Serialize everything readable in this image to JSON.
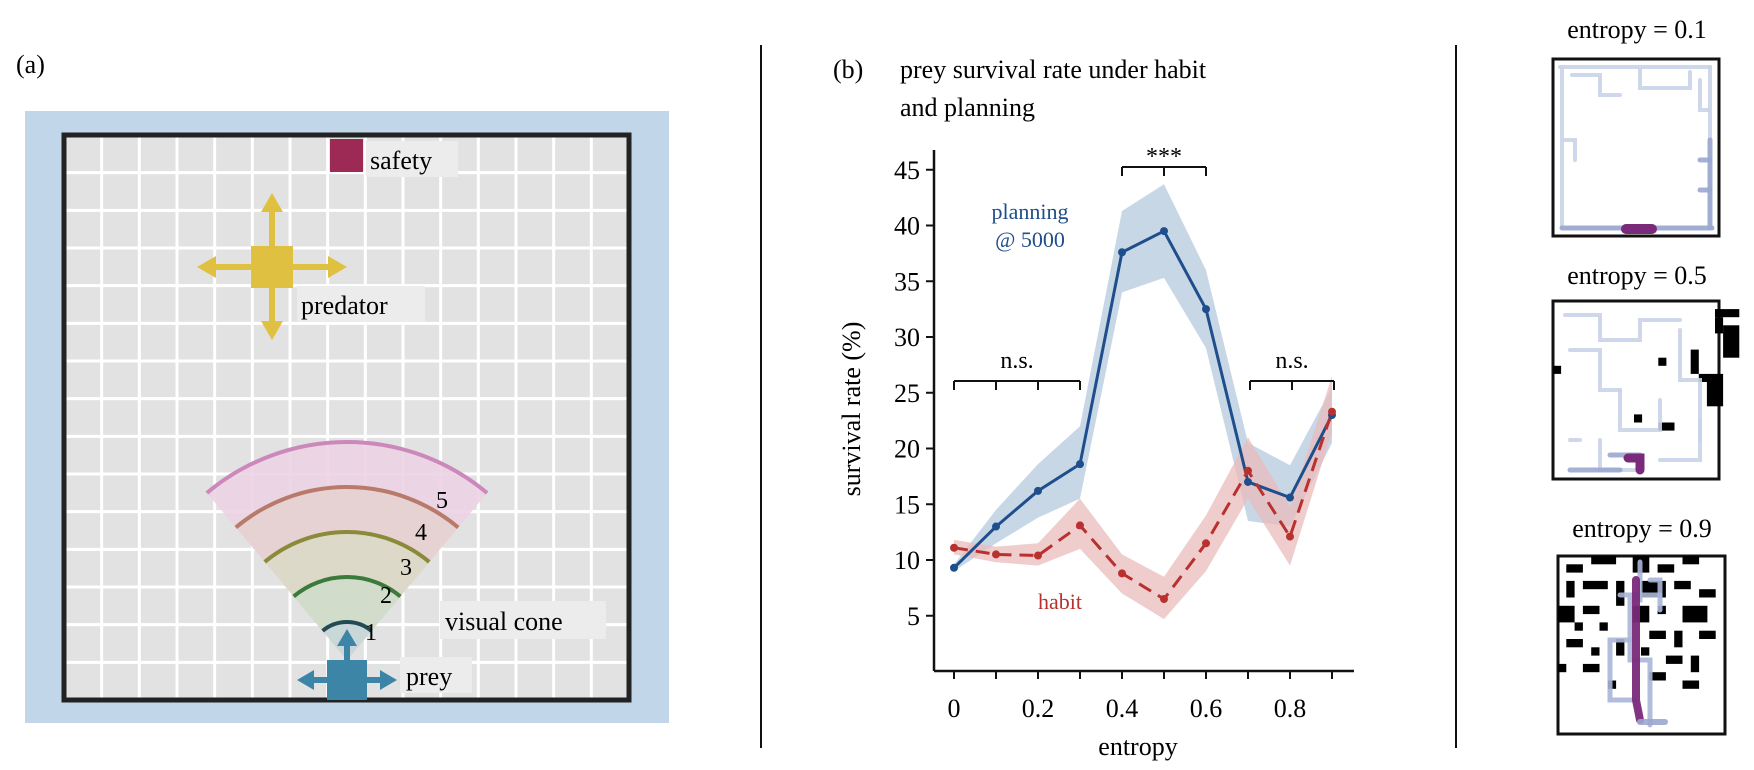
{
  "panel_a": {
    "label": "(a)",
    "labels": {
      "safety": "safety",
      "predator": "predator",
      "visual_cone": "visual cone",
      "prey": "prey"
    },
    "cone_numbers": [
      "1",
      "2",
      "3",
      "4",
      "5"
    ],
    "colors": {
      "border_bg": "#c2d6ea",
      "grid_bg": "#e2e2e2",
      "safety": "#9c2a55",
      "predator": "#e0c040",
      "prey": "#3c85a6",
      "arc1": "#224b55",
      "arc2": "#3a7a3a",
      "arc3": "#8a8a3a",
      "arc4": "#b87a6a",
      "arc5": "#cc88bb"
    }
  },
  "panel_b": {
    "label": "(b)",
    "title_line1": "prey survival rate under habit",
    "title_line2": "and planning",
    "annotations": {
      "planning_line1": "planning",
      "planning_line2": "@ 5000",
      "habit": "habit",
      "ns_left": "n.s.",
      "sig": "***",
      "ns_right": "n.s."
    }
  },
  "chart_data": {
    "type": "line",
    "x": [
      0,
      0.1,
      0.2,
      0.3,
      0.4,
      0.5,
      0.6,
      0.7,
      0.8,
      0.9
    ],
    "xlabel": "entropy",
    "ylabel": "survival rate (%)",
    "xticks": [
      "0",
      "0.2",
      "0.4",
      "0.6",
      "0.8"
    ],
    "yticks": [
      "5",
      "10",
      "15",
      "20",
      "25",
      "30",
      "35",
      "40",
      "45"
    ],
    "xlim": [
      -0.05,
      0.95
    ],
    "ylim": [
      0,
      47
    ],
    "series": [
      {
        "name": "planning @ 5000",
        "color": "#1f4e8c",
        "band_color": "#b4c9de",
        "style": "solid",
        "values": [
          9.3,
          13.0,
          16.2,
          18.6,
          37.6,
          39.5,
          32.5,
          17.0,
          15.6,
          23.0
        ],
        "lower": [
          9.0,
          11.5,
          13.8,
          15.5,
          34.0,
          35.3,
          29.0,
          13.5,
          13.0,
          20.5
        ],
        "upper": [
          9.6,
          14.5,
          18.6,
          22.0,
          41.3,
          43.7,
          36.0,
          20.5,
          18.5,
          25.5
        ]
      },
      {
        "name": "habit",
        "color": "#b8312f",
        "band_color": "#e9bcbc",
        "style": "dashed",
        "values": [
          11.1,
          10.5,
          10.4,
          13.1,
          8.8,
          6.5,
          11.5,
          18.0,
          12.1,
          23.3
        ],
        "lower": [
          10.5,
          9.8,
          9.5,
          11.0,
          7.0,
          4.7,
          9.0,
          15.5,
          9.5,
          21.5
        ],
        "upper": [
          11.8,
          11.2,
          11.5,
          15.5,
          10.5,
          8.5,
          14.0,
          21.0,
          14.8,
          26.5
        ]
      }
    ]
  },
  "panel_c": {
    "maps": [
      {
        "title": "entropy = 0.1"
      },
      {
        "title": "entropy = 0.5"
      },
      {
        "title": "entropy = 0.9"
      }
    ]
  }
}
